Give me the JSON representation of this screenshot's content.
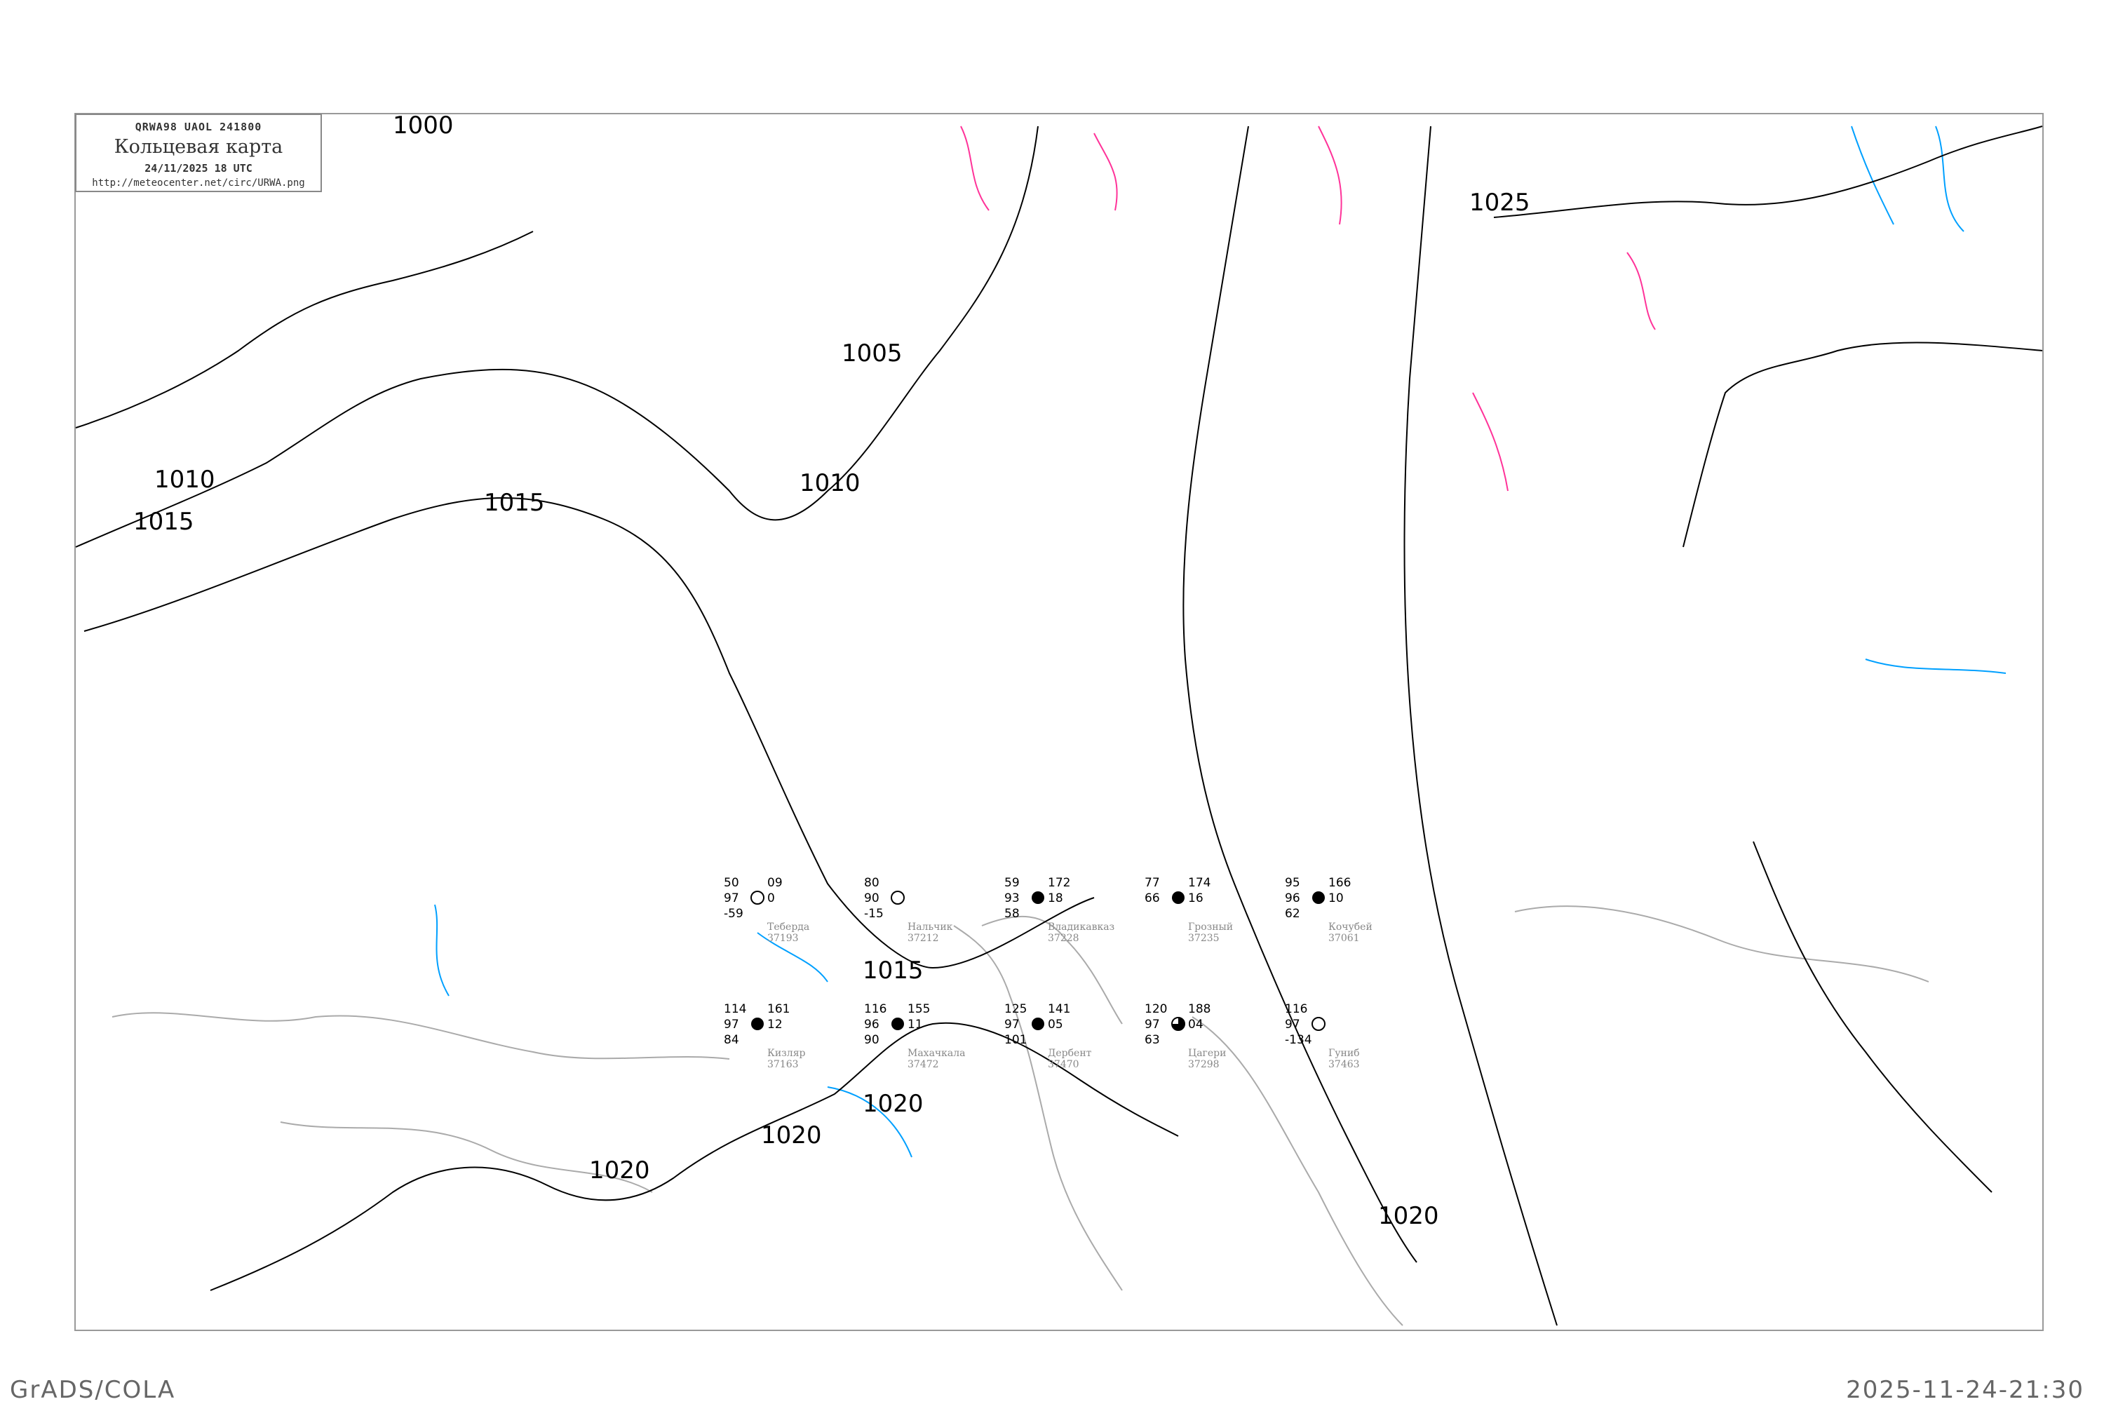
{
  "header": {
    "bulletin": "QRWA98   UAOL   241800",
    "title": "Кольцевая карта",
    "datetime": "24/11/2025 18 UTC",
    "url": "http://meteocenter.net/circ/URWA.png"
  },
  "footer": {
    "software": "GrADS/COLA",
    "timestamp": "2025-11-24-21:30"
  },
  "colors": {
    "isobar": "#000000",
    "coastline": "#aaaaaa",
    "river": "#00a0ff",
    "front": "#ff3399",
    "precip_yellow": "#ffff00",
    "precip_green": "#00cc00",
    "precip_blue": "#3399ff"
  },
  "isobar_labels": [
    "1000",
    "1005",
    "1010",
    "1010",
    "1015",
    "1015",
    "1015",
    "1020",
    "1020",
    "1020",
    "1020",
    "1025"
  ],
  "stations": [
    {
      "name": "Теберда",
      "index": "37193",
      "temp": "50",
      "vis": "97",
      "dew": "-59",
      "pressure": "09",
      "tend": "0",
      "cloud": "clear"
    },
    {
      "name": "Нальчик",
      "index": "37212",
      "temp": "80",
      "vis": "90",
      "dew": "-15",
      "pressure": "",
      "tend": "",
      "cloud": "clear"
    },
    {
      "name": "Владикавказ",
      "index": "37228",
      "temp": "59",
      "vis": "93",
      "dew": "58",
      "pressure": "172",
      "tend": "18",
      "cloud": "overcast"
    },
    {
      "name": "Грозный",
      "index": "37235",
      "temp": "77",
      "vis": "66",
      "dew": "",
      "pressure": "174",
      "tend": "16",
      "cloud": "overcast"
    },
    {
      "name": "Кочубей",
      "index": "37061",
      "temp": "95",
      "vis": "96",
      "dew": "62",
      "pressure": "166",
      "tend": "10",
      "cloud": "overcast"
    },
    {
      "name": "Кизляр",
      "index": "37163",
      "temp": "114",
      "vis": "97",
      "dew": "84",
      "pressure": "161",
      "tend": "12",
      "cloud": "overcast"
    },
    {
      "name": "Махачкала",
      "index": "37472",
      "temp": "116",
      "vis": "96",
      "dew": "90",
      "pressure": "155",
      "tend": "11",
      "cloud": "overcast"
    },
    {
      "name": "Дербент",
      "index": "37470",
      "temp": "125",
      "vis": "97",
      "dew": "101",
      "pressure": "141",
      "tend": "05",
      "cloud": "overcast"
    },
    {
      "name": "Цагери",
      "index": "37298",
      "temp": "120",
      "vis": "97",
      "dew": "63",
      "pressure": "188",
      "tend": "04",
      "cloud": "broken"
    },
    {
      "name": "Гуниб",
      "index": "37463",
      "temp": "116",
      "vis": "97",
      "dew": "-134",
      "pressure": "",
      "tend": "",
      "cloud": "clear"
    }
  ]
}
